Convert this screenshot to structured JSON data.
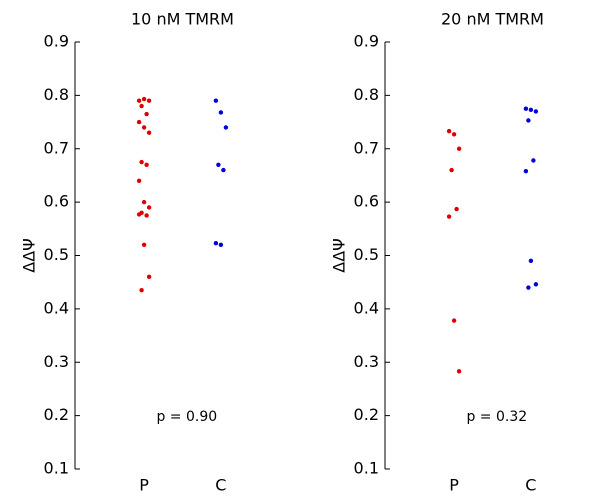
{
  "chart_data": [
    {
      "type": "strip",
      "title": "10 nM TMRM",
      "y_label": "ΔΔΨ",
      "annotation": "p = 0.90",
      "categories": [
        "P",
        "C"
      ],
      "colors": [
        "#e00000",
        "#0000e0"
      ],
      "values": [
        [
          0.79,
          0.793,
          0.79,
          0.78,
          0.765,
          0.75,
          0.74,
          0.73,
          0.675,
          0.67,
          0.64,
          0.6,
          0.59,
          0.58,
          0.575,
          0.577,
          0.52,
          0.46,
          0.435
        ],
        [
          0.79,
          0.768,
          0.74,
          0.67,
          0.66,
          0.523,
          0.52
        ]
      ],
      "ylim": [
        0.1,
        0.9
      ],
      "yticks": [
        0.1,
        0.2,
        0.3,
        0.4,
        0.5,
        0.6,
        0.7,
        0.8,
        0.9
      ]
    },
    {
      "type": "strip",
      "title": "20 nM TMRM",
      "y_label": "ΔΔΨ",
      "annotation": "p = 0.32",
      "categories": [
        "P",
        "C"
      ],
      "colors": [
        "#e00000",
        "#0000e0"
      ],
      "values": [
        [
          0.733,
          0.727,
          0.7,
          0.66,
          0.587,
          0.573,
          0.378,
          0.283
        ],
        [
          0.775,
          0.773,
          0.77,
          0.753,
          0.678,
          0.658,
          0.49,
          0.446,
          0.44
        ]
      ],
      "ylim": [
        0.1,
        0.9
      ],
      "yticks": [
        0.1,
        0.2,
        0.3,
        0.4,
        0.5,
        0.6,
        0.7,
        0.8,
        0.9
      ]
    }
  ]
}
